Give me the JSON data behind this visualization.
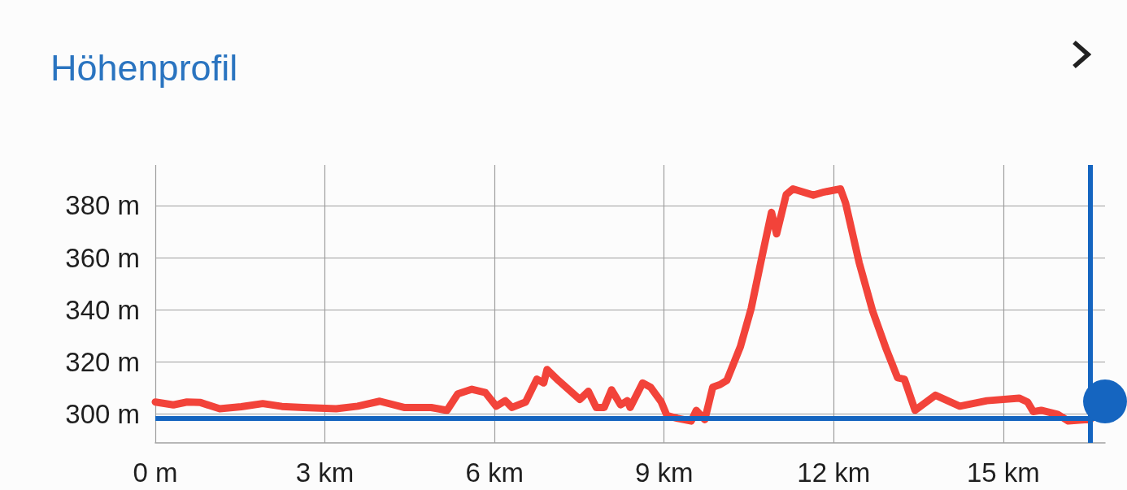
{
  "chart_data": {
    "type": "line",
    "title": "Höhenprofil",
    "x": [
      0,
      0.32,
      0.56,
      0.8,
      1.14,
      1.52,
      1.9,
      2.24,
      2.62,
      3.2,
      3.58,
      3.97,
      4.4,
      4.88,
      5.16,
      5.35,
      5.6,
      5.84,
      6.03,
      6.19,
      6.31,
      6.55,
      6.75,
      6.87,
      6.93,
      7.13,
      7.51,
      7.66,
      7.8,
      7.94,
      8.07,
      8.23,
      8.35,
      8.4,
      8.62,
      8.76,
      8.95,
      9.05,
      9.24,
      9.48,
      9.57,
      9.72,
      9.86,
      9.99,
      10.11,
      10.35,
      10.54,
      10.73,
      10.9,
      10.99,
      11.16,
      11.28,
      11.64,
      11.83,
      12.12,
      12.21,
      12.45,
      12.69,
      12.93,
      13.13,
      13.25,
      13.44,
      13.8,
      14.23,
      14.71,
      15.28,
      15.43,
      15.53,
      15.67,
      15.96,
      16.15,
      16.44,
      16.54
    ],
    "series": [
      {
        "color": "#f2433a",
        "values": [
          304.5,
          303.4,
          304.5,
          304.3,
          301.9,
          302.7,
          303.9,
          302.8,
          302.4,
          301.9,
          302.9,
          304.8,
          302.4,
          302.4,
          301.3,
          307.6,
          309.4,
          308.1,
          302.9,
          305,
          302.4,
          304.5,
          313.3,
          311.8,
          317,
          312.8,
          305.5,
          308.6,
          302.4,
          302.4,
          309.2,
          303.4,
          305,
          302.4,
          311.8,
          310.2,
          304.5,
          299.3,
          298.2,
          297.2,
          301.3,
          297.7,
          310.2,
          311.2,
          312.8,
          325.8,
          340.4,
          360.2,
          377.4,
          369.1,
          384.2,
          386.4,
          384,
          385.2,
          386.4,
          381,
          358.1,
          339.4,
          324.8,
          313.8,
          313.3,
          301.3,
          307.1,
          302.9,
          305,
          306,
          304.5,
          300.8,
          301.3,
          299.8,
          297.2,
          297.7,
          297.7
        ]
      }
    ],
    "xlim": [
      0,
      16.8
    ],
    "ylim": [
      288.8,
      395.6
    ],
    "xticks": [
      {
        "value": 0,
        "label": "0 m"
      },
      {
        "value": 3,
        "label": "3 km"
      },
      {
        "value": 6,
        "label": "6 km"
      },
      {
        "value": 9,
        "label": "9 km"
      },
      {
        "value": 12,
        "label": "12 km"
      },
      {
        "value": 15,
        "label": "15 km"
      }
    ],
    "yticks": [
      {
        "value": 300,
        "label": "300 m"
      },
      {
        "value": 320,
        "label": "320 m"
      },
      {
        "value": 340,
        "label": "340 m"
      },
      {
        "value": 360,
        "label": "360 m"
      },
      {
        "value": 380,
        "label": "380 m"
      }
    ],
    "grid": true,
    "marker": "none",
    "line_style": "solid",
    "ref_lines": [
      {
        "axis": "x",
        "value": 16.54,
        "color": "#1565c0"
      },
      {
        "axis": "y",
        "value": 298.4,
        "color": "#1565c0"
      }
    ]
  }
}
